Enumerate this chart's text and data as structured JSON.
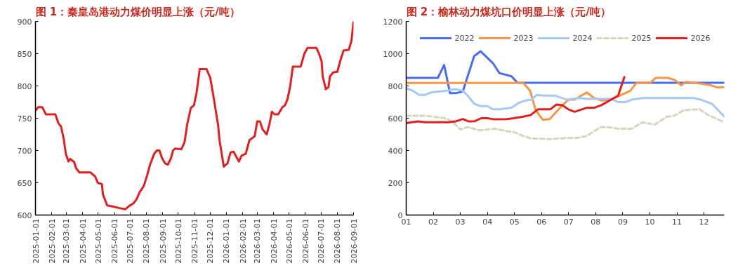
{
  "chart_data": [
    {
      "type": "line",
      "title": "图 1：秦皇岛港动力煤价明显上涨（元/吨）",
      "color": "#e02020",
      "x": [
        "2025-01-01",
        "2025-01-06",
        "2025-01-14",
        "2025-01-21",
        "2025-02-08",
        "2025-02-14",
        "2025-02-19",
        "2025-02-24",
        "2025-02-28",
        "2025-03-05",
        "2025-03-08",
        "2025-03-16",
        "2025-03-20",
        "2025-03-26",
        "2025-04-16",
        "2025-04-25",
        "2025-04-30",
        "2025-05-08",
        "2025-05-10",
        "2025-05-18",
        "2025-05-30",
        "2025-06-09",
        "2025-06-22",
        "2025-06-29",
        "2025-07-07",
        "2025-07-13",
        "2025-07-19",
        "2025-07-27",
        "2025-08-02",
        "2025-08-08",
        "2025-08-16",
        "2025-08-21",
        "2025-08-26",
        "2025-08-31",
        "2025-09-06",
        "2025-09-11",
        "2025-09-17",
        "2025-09-21",
        "2025-09-25",
        "2025-10-07",
        "2025-10-13",
        "2025-10-18",
        "2025-10-25",
        "2025-10-31",
        "2025-11-05",
        "2025-11-11",
        "2025-11-24",
        "2025-12-01",
        "2025-12-06",
        "2025-12-12",
        "2025-12-16",
        "2025-12-19",
        "2025-12-24",
        "2025-12-27",
        "2026-01-03",
        "2026-01-09",
        "2026-01-15",
        "2026-01-20",
        "2026-01-25",
        "2026-01-30",
        "2026-02-07",
        "2026-02-14",
        "2026-02-24",
        "2026-03-01",
        "2026-03-06",
        "2026-03-11",
        "2026-03-19",
        "2026-03-24",
        "2026-03-29",
        "2026-04-03",
        "2026-04-10",
        "2026-04-18",
        "2026-04-23",
        "2026-04-28",
        "2026-05-03",
        "2026-05-08",
        "2026-05-23",
        "2026-05-30",
        "2026-06-05",
        "2026-06-22",
        "2026-06-27",
        "2026-07-02",
        "2026-07-04",
        "2026-07-10",
        "2026-07-15",
        "2026-07-18",
        "2026-07-24",
        "2026-08-01",
        "2026-08-07",
        "2026-08-13",
        "2026-08-23",
        "2026-08-28",
        "2026-09-01"
      ],
      "values": [
        762,
        767,
        767,
        756,
        756,
        742,
        737,
        718,
        695,
        683,
        687,
        682,
        672,
        666,
        666,
        660,
        650,
        648,
        632,
        615,
        613,
        611,
        609,
        614,
        618,
        624,
        635,
        645,
        660,
        678,
        695,
        700,
        700,
        688,
        680,
        678,
        688,
        700,
        703,
        702,
        713,
        740,
        766,
        770,
        790,
        826,
        826,
        813,
        790,
        760,
        740,
        715,
        690,
        675,
        680,
        697,
        698,
        690,
        683,
        692,
        695,
        716,
        722,
        745,
        745,
        733,
        725,
        740,
        760,
        756,
        756,
        767,
        770,
        780,
        800,
        830,
        830,
        850,
        859,
        859,
        850,
        838,
        815,
        795,
        798,
        815,
        821,
        822,
        840,
        855,
        856,
        870,
        900
      ],
      "xlim": [
        "2025-01-01",
        "2026-09-01"
      ],
      "xticks": [
        "2025-01-01",
        "2025-02-01",
        "2025-03-01",
        "2025-04-01",
        "2025-05-01",
        "2025-06-01",
        "2025-07-01",
        "2025-08-01",
        "2025-09-01",
        "2025-10-01",
        "2025-11-01",
        "2025-12-01",
        "2026-01-01",
        "2026-02-01",
        "2026-03-01",
        "2026-04-01",
        "2026-05-01",
        "2026-06-01",
        "2026-07-01",
        "2026-08-01",
        "2026-09-01"
      ],
      "ylim": [
        600,
        900
      ],
      "yticks": [
        600,
        650,
        700,
        750,
        800,
        850,
        900
      ]
    },
    {
      "type": "line",
      "title": "图 2：榆林动力煤坑口价明显上涨（元/吨）",
      "legend": "top",
      "xlim": [
        1,
        12.75
      ],
      "ylim": [
        0,
        1200
      ],
      "yticks": [
        0,
        200,
        400,
        600,
        800,
        1000,
        1200
      ],
      "xticks": [
        {
          "value": 1,
          "label": "01"
        },
        {
          "value": 2,
          "label": "02"
        },
        {
          "value": 3,
          "label": "03"
        },
        {
          "value": 4,
          "label": "04"
        },
        {
          "value": 5,
          "label": "05"
        },
        {
          "value": 6,
          "label": "06"
        },
        {
          "value": 7,
          "label": "07"
        },
        {
          "value": 8,
          "label": "08"
        },
        {
          "value": 9,
          "label": "09"
        },
        {
          "value": 10,
          "label": "10"
        },
        {
          "value": 11,
          "label": "11"
        },
        {
          "value": 12,
          "label": "12"
        }
      ],
      "series": [
        {
          "name": "2022",
          "color": "#4a6cf0",
          "x": [
            1,
            2.17,
            2.4,
            2.62,
            2.82,
            3.09,
            3.51,
            3.75,
            4.21,
            4.44,
            4.89,
            5.11,
            12.75
          ],
          "values": [
            850,
            850,
            930,
            755,
            755,
            765,
            985,
            1015,
            940,
            880,
            860,
            820,
            820
          ]
        },
        {
          "name": "2023",
          "color": "#f79646",
          "x": [
            1,
            5.33,
            5.58,
            5.78,
            6.05,
            6.3,
            6.55,
            6.77,
            6.99,
            7.22,
            7.67,
            7.94,
            8.2,
            8.56,
            8.83,
            9.28,
            9.5,
            10.0,
            10.22,
            10.67,
            10.94,
            11.15,
            11.35,
            11.84,
            12.24,
            12.51,
            12.75
          ],
          "values": [
            818,
            818,
            770,
            650,
            590,
            595,
            640,
            680,
            715,
            715,
            760,
            725,
            710,
            715,
            735,
            770,
            818,
            818,
            850,
            850,
            835,
            805,
            825,
            815,
            805,
            790,
            792
          ]
        },
        {
          "name": "2024",
          "color": "#a6c8f5",
          "x": [
            1,
            1.25,
            1.48,
            1.7,
            1.92,
            2.19,
            2.46,
            2.82,
            3.09,
            3.27,
            3.51,
            3.74,
            3.99,
            4.21,
            4.44,
            4.89,
            5.15,
            5.42,
            5.62,
            5.83,
            6.05,
            6.5,
            6.95,
            7.4,
            7.67,
            8.56,
            8.83,
            9.1,
            9.33,
            9.73,
            11.61,
            11.88,
            12.29,
            12.75
          ],
          "values": [
            785,
            770,
            745,
            745,
            760,
            765,
            770,
            780,
            770,
            740,
            690,
            675,
            675,
            655,
            655,
            665,
            695,
            710,
            715,
            745,
            740,
            740,
            715,
            725,
            720,
            720,
            700,
            700,
            715,
            725,
            725,
            715,
            690,
            610
          ]
        },
        {
          "name": "2025",
          "color": "#ddd3bd",
          "line_style": "dashed",
          "x": [
            1,
            1.74,
            2.46,
            2.73,
            3.0,
            3.27,
            3.72,
            4.26,
            4.71,
            4.97,
            5.33,
            5.6,
            6.32,
            6.95,
            7.31,
            7.67,
            7.94,
            8.2,
            8.47,
            8.83,
            9.33,
            9.73,
            10.18,
            10.63,
            10.9,
            11.26,
            11.84,
            12.15,
            12.75
          ],
          "values": [
            615,
            615,
            600,
            575,
            530,
            545,
            525,
            535,
            520,
            515,
            490,
            475,
            470,
            478,
            478,
            490,
            520,
            545,
            545,
            535,
            535,
            575,
            560,
            610,
            615,
            650,
            655,
            620,
            575
          ]
        },
        {
          "name": "2026",
          "color": "#e02020",
          "x": [
            1,
            1.43,
            1.7,
            2.55,
            2.82,
            3.09,
            3.31,
            3.54,
            3.77,
            3.99,
            4.26,
            4.71,
            4.97,
            5.33,
            5.6,
            5.87,
            6.32,
            6.55,
            6.77,
            6.99,
            7.22,
            7.67,
            7.94,
            8.2,
            8.83,
            9.06
          ],
          "values": [
            570,
            580,
            575,
            575,
            580,
            595,
            580,
            582,
            600,
            600,
            593,
            595,
            600,
            610,
            620,
            655,
            655,
            685,
            680,
            655,
            640,
            665,
            665,
            680,
            740,
            855
          ]
        }
      ]
    }
  ]
}
